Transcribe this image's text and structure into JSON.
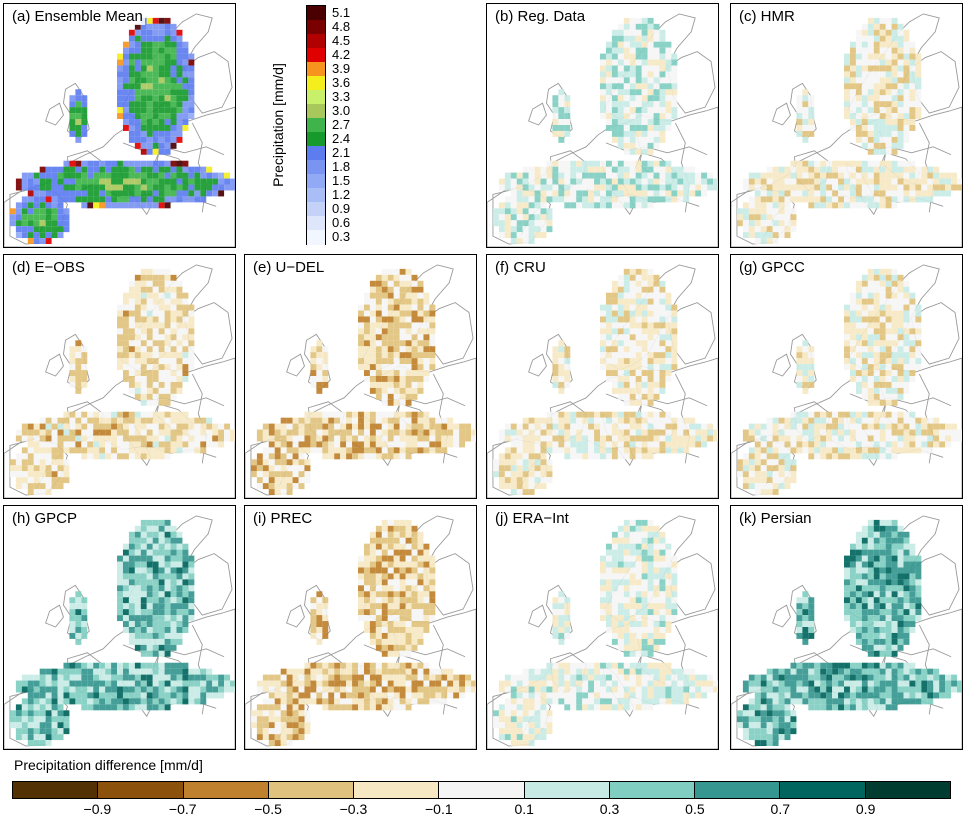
{
  "chart_data": {
    "type": "heatmap",
    "figure": "Multi-panel maps of European precipitation: ensemble mean and deviations of individual datasets",
    "colorbar_mean": {
      "title": "Precipitation [mm/d]",
      "tick_labels": [
        "5.1",
        "4.8",
        "4.5",
        "4.2",
        "3.9",
        "3.6",
        "3.3",
        "3.0",
        "2.7",
        "2.4",
        "2.1",
        "1.8",
        "1.5",
        "1.2",
        "0.9",
        "0.6",
        "0.3"
      ],
      "colors": [
        "#4a0000",
        "#7a0000",
        "#b00000",
        "#e00000",
        "#f7941d",
        "#f4ee1c",
        "#c9f06a",
        "#a8c85c",
        "#3eb44a",
        "#169a2c",
        "#5c7cf0",
        "#7a94f2",
        "#92aaf5",
        "#a9bdf7",
        "#c4d2f9",
        "#dde6fb",
        "#f2f6fe"
      ]
    },
    "colorbar_diff": {
      "title": "Precipitation difference [mm/d]",
      "tick_labels": [
        "−0.9",
        "−0.7",
        "−0.5",
        "−0.3",
        "−0.1",
        "0.1",
        "0.3",
        "0.5",
        "0.7",
        "0.9"
      ],
      "colors": [
        "#543005",
        "#8c510a",
        "#bf812d",
        "#dfc27d",
        "#f6e8c3",
        "#f5f5f5",
        "#c7eae5",
        "#80cdc1",
        "#35978f",
        "#01665e",
        "#003c30"
      ]
    },
    "panels": [
      {
        "label": "(a) Ensemble Mean",
        "scale": "mean",
        "tone": 0.0
      },
      {
        "label": "(b) Reg. Data",
        "scale": "diff",
        "tone": 0.15
      },
      {
        "label": "(c) HMR",
        "scale": "diff",
        "tone": -0.1
      },
      {
        "label": "(d) E−OBS",
        "scale": "diff",
        "tone": -0.25
      },
      {
        "label": "(e) U−DEL",
        "scale": "diff",
        "tone": -0.35
      },
      {
        "label": "(f) CRU",
        "scale": "diff",
        "tone": -0.15
      },
      {
        "label": "(g) GPCC",
        "scale": "diff",
        "tone": -0.12
      },
      {
        "label": "(h) GPCP",
        "scale": "diff",
        "tone": 0.55
      },
      {
        "label": "(i) PREC",
        "scale": "diff",
        "tone": -0.4
      },
      {
        "label": "(j) ERA−Int",
        "scale": "diff",
        "tone": 0.05
      },
      {
        "label": "(k) Persian",
        "scale": "diff",
        "tone": 0.6
      }
    ]
  }
}
